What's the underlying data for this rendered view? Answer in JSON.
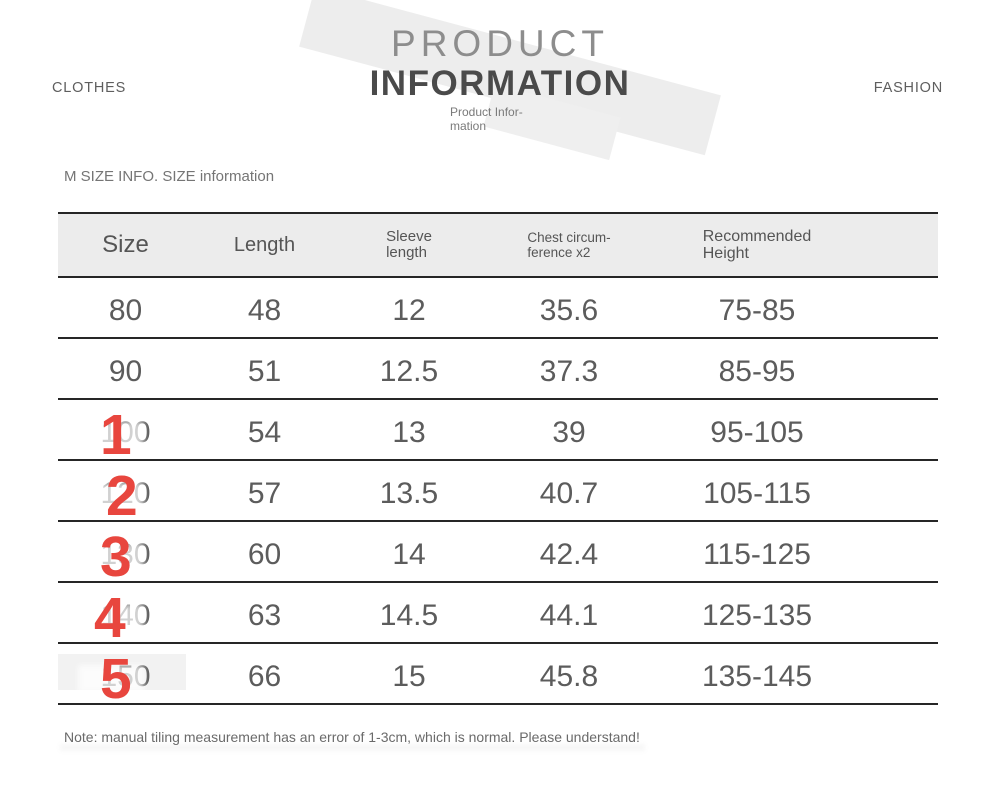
{
  "header": {
    "brand_left": "CLOTHES",
    "brand_right": "FASHION",
    "title_line1": "PRODUCT",
    "title_line2": "INFORMATION",
    "subtitle_line1": "Product Infor-",
    "subtitle_line2": "mation"
  },
  "section_label": "M SIZE INFO. SIZE information",
  "table": {
    "columns": [
      {
        "line1": "Size"
      },
      {
        "line1": "Length"
      },
      {
        "line1": "Sleeve",
        "line2": "length"
      },
      {
        "line1": "Chest circum-",
        "line2": "ference x2"
      },
      {
        "line1": "Recommended",
        "line2": "Height"
      }
    ],
    "rows": [
      {
        "size": "80",
        "length": "48",
        "sleeve": "12",
        "chest": "35.6",
        "height": "75-85"
      },
      {
        "size": "90",
        "length": "51",
        "sleeve": "12.5",
        "chest": "37.3",
        "height": "85-95"
      },
      {
        "size": "100",
        "length": "54",
        "sleeve": "13",
        "chest": "39",
        "height": "95-105",
        "mark": "1"
      },
      {
        "size": "120",
        "length": "57",
        "sleeve": "13.5",
        "chest": "40.7",
        "height": "105-115",
        "mark": "2"
      },
      {
        "size": "130",
        "length": "60",
        "sleeve": "14",
        "chest": "42.4",
        "height": "115-125",
        "mark": "3"
      },
      {
        "size": "140",
        "length": "63",
        "sleeve": "14.5",
        "chest": "44.1",
        "height": "125-135",
        "mark": "4"
      },
      {
        "size": "150",
        "length": "66",
        "sleeve": "15",
        "chest": "45.8",
        "height": "135-145",
        "mark": "5"
      }
    ]
  },
  "note": "Note: manual tiling measurement has an error of 1-3cm, which is normal. Please understand!",
  "colors": {
    "red_mark": "#e8463e",
    "header_bg": "#ececec",
    "table_border": "#262626",
    "body_text": "#5c5c5c"
  }
}
